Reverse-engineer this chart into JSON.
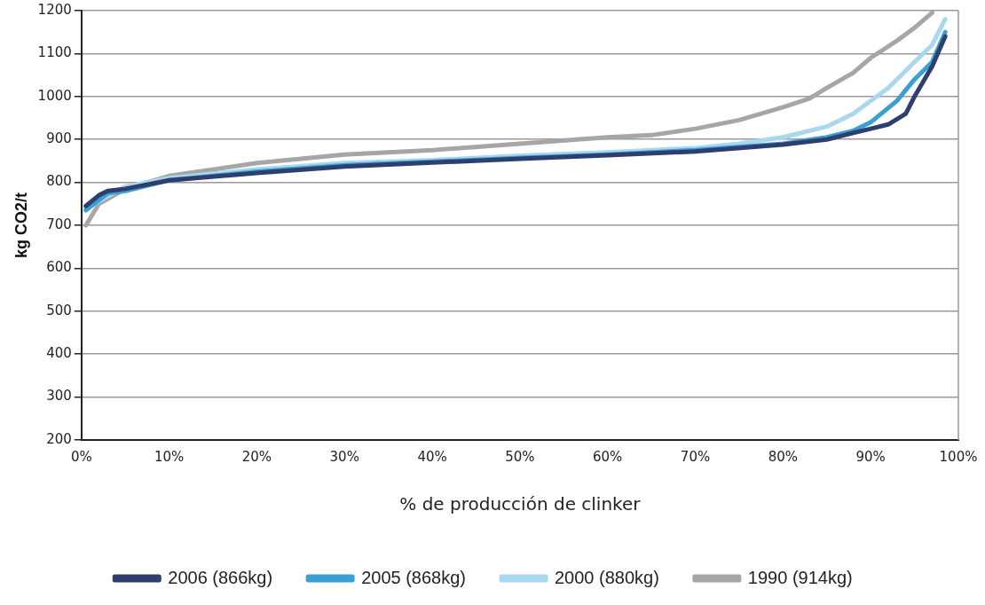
{
  "chart_data": {
    "type": "line",
    "xlabel": "% de producción de clinker",
    "ylabel": "kg CO2/t",
    "xlim": [
      0,
      100
    ],
    "xticks": [
      {
        "value": 0,
        "label": "0%"
      },
      {
        "value": 10,
        "label": "10%"
      },
      {
        "value": 20,
        "label": "20%"
      },
      {
        "value": 30,
        "label": "30%"
      },
      {
        "value": 40,
        "label": "40%"
      },
      {
        "value": 50,
        "label": "50%"
      },
      {
        "value": 60,
        "label": "60%"
      },
      {
        "value": 70,
        "label": "70%"
      },
      {
        "value": 80,
        "label": "80%"
      },
      {
        "value": 90,
        "label": "90%"
      },
      {
        "value": 100,
        "label": "100%"
      }
    ],
    "ylim": [
      200,
      1200
    ],
    "yticks": [
      200,
      300,
      400,
      500,
      600,
      700,
      800,
      900,
      1000,
      1100,
      1200
    ],
    "grid": "y",
    "legend": "bottom",
    "marker": "none",
    "line_style": "solid",
    "series": [
      {
        "name": "2006 (866kg)",
        "color": "#2e3f6e",
        "x": [
          0.5,
          2,
          3,
          5,
          10,
          20,
          30,
          40,
          50,
          60,
          70,
          80,
          85,
          88,
          90,
          92,
          94,
          95,
          97,
          98.5
        ],
        "values": [
          745,
          770,
          780,
          785,
          805,
          822,
          837,
          846,
          855,
          863,
          872,
          888,
          900,
          915,
          925,
          935,
          960,
          1000,
          1070,
          1140
        ]
      },
      {
        "name": "2005 (868kg)",
        "color": "#3a9fd4",
        "x": [
          0.5,
          3,
          5,
          10,
          20,
          30,
          40,
          50,
          60,
          70,
          80,
          85,
          88,
          90,
          93,
          95,
          97,
          98.5
        ],
        "values": [
          735,
          775,
          780,
          805,
          825,
          840,
          848,
          857,
          865,
          875,
          890,
          905,
          920,
          940,
          990,
          1040,
          1080,
          1150
        ]
      },
      {
        "name": "2000 (880kg)",
        "color": "#a9d7ef",
        "x": [
          0.5,
          5,
          10,
          20,
          30,
          40,
          50,
          60,
          70,
          75,
          80,
          85,
          88,
          90,
          92,
          95,
          97,
          98.5
        ],
        "values": [
          740,
          790,
          810,
          830,
          845,
          852,
          862,
          870,
          880,
          890,
          905,
          930,
          960,
          990,
          1020,
          1080,
          1120,
          1180
        ]
      },
      {
        "name": "1990 (914kg)",
        "color": "#a6a6a6",
        "x": [
          0.5,
          2,
          5,
          10,
          20,
          30,
          40,
          50,
          60,
          65,
          70,
          75,
          80,
          83,
          85,
          88,
          90,
          93,
          95,
          97
        ],
        "values": [
          700,
          750,
          785,
          815,
          845,
          865,
          875,
          890,
          905,
          910,
          925,
          945,
          975,
          995,
          1020,
          1055,
          1090,
          1130,
          1160,
          1195
        ]
      }
    ]
  }
}
